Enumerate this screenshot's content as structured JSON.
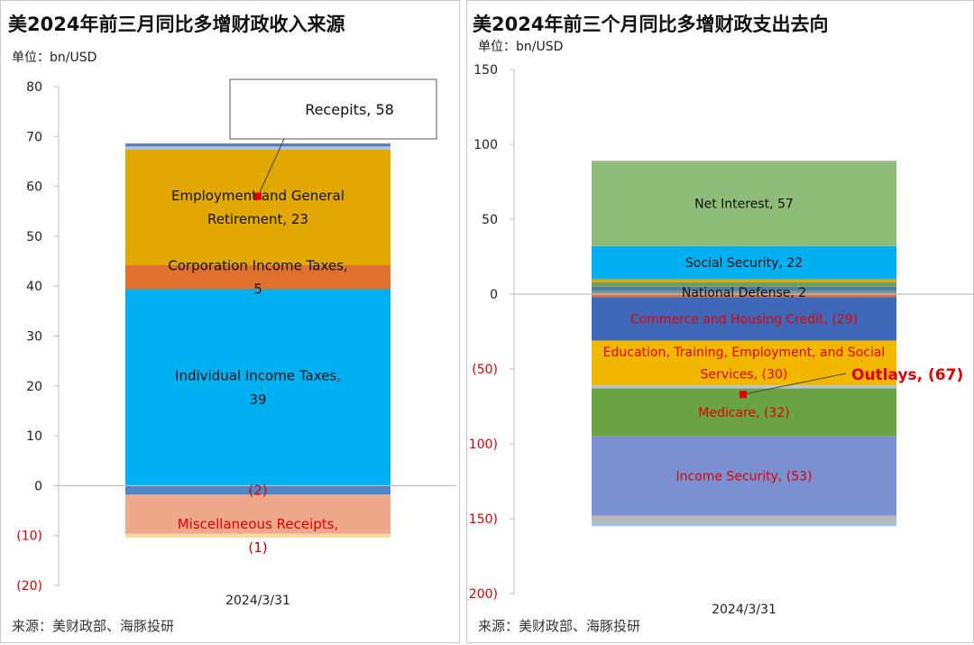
{
  "chart_data": [
    {
      "type": "bar",
      "subtype": "stacked",
      "title": "美2024年前三月同比多增财政收入来源",
      "unit_label": "单位：bn/USD",
      "source": "来源：美财政部、海豚投研",
      "categories": [
        "2024/3/31"
      ],
      "ylim": [
        -20,
        80
      ],
      "yticks": [
        80,
        70,
        60,
        50,
        40,
        30,
        20,
        10,
        0,
        -10,
        -20
      ],
      "ytick_labels": [
        "80",
        "70",
        "60",
        "50",
        "40",
        "30",
        "20",
        "10",
        "0",
        "(10)",
        "(20)"
      ],
      "legend": "none",
      "series": [
        {
          "label": "Individual Income Taxes, 39",
          "values": [
            39.4
          ],
          "color": "#00B0F0",
          "label_color": "#111111"
        },
        {
          "label": "Corporation Income Taxes, 5",
          "values": [
            4.8
          ],
          "color": "#E07030",
          "label_color": "#111111"
        },
        {
          "label": "Employment and General Retirement, 23",
          "values": [
            23.2
          ],
          "color": "#E0A800",
          "label_color": "#111111"
        },
        {
          "label": "",
          "values": [
            0.6
          ],
          "color": "#A9C4E4",
          "label_color": "#111111"
        },
        {
          "label": "",
          "values": [
            0.6
          ],
          "color": "#5B7DB8",
          "label_color": "#111111"
        },
        {
          "label": "(2)",
          "values": [
            -1.8
          ],
          "color": "#4F86C6",
          "label_color": "#E00000"
        },
        {
          "label": "",
          "values": [
            -7.8
          ],
          "color": "#F0A88C",
          "label_color": "#E00000"
        },
        {
          "label": "Miscellaneous Receipts, (1)",
          "values": [
            -0.8
          ],
          "color": "#F7D9A0",
          "label_color": "#E00000"
        }
      ],
      "total": {
        "label": "Recepits, 58",
        "value": 58
      }
    },
    {
      "type": "bar",
      "subtype": "stacked",
      "title": "美2024年前三个月同比多增财政支出去向",
      "unit_label": "单位：bn/USD",
      "source": "来源：美财政部、海豚投研",
      "categories": [
        "2024/3/31"
      ],
      "ylim": [
        -200,
        150
      ],
      "yticks": [
        150,
        100,
        50,
        0,
        -50,
        -100,
        -150,
        -200
      ],
      "ytick_labels": [
        "150",
        "100",
        "50",
        "0",
        "(50)",
        "(100)",
        "(150)",
        "(200)"
      ],
      "legend": "none",
      "series": [
        {
          "label": "National Defense, 2",
          "values": [
            2
          ],
          "color": "#8D8D8D",
          "label_color": "#111111"
        },
        {
          "label": "",
          "values": [
            3
          ],
          "color": "#4F7F9F",
          "label_color": "#111111"
        },
        {
          "label": "",
          "values": [
            3
          ],
          "color": "#6F9F5F",
          "label_color": "#111111"
        },
        {
          "label": "",
          "values": [
            2
          ],
          "color": "#E0A800",
          "label_color": "#111111"
        },
        {
          "label": "Social Security, 22",
          "values": [
            22
          ],
          "color": "#00B0F0",
          "label_color": "#111111"
        },
        {
          "label": "Net Interest, 57",
          "values": [
            57
          ],
          "color": "#8FBC78",
          "label_color": "#111111"
        },
        {
          "label": "",
          "values": [
            -2
          ],
          "color": "#E07030",
          "label_color": "#E00000"
        },
        {
          "label": "Commerce and Housing Credit, (29)",
          "values": [
            -29
          ],
          "color": "#3F68B8",
          "label_color": "#E00000"
        },
        {
          "label": "Education, Training, Employment, and Social Services, (30)",
          "values": [
            -30
          ],
          "color": "#F2B800",
          "label_color": "#E00000"
        },
        {
          "label": "",
          "values": [
            -2
          ],
          "color": "#B0C4DE",
          "label_color": "#E00000"
        },
        {
          "label": "Medicare, (32)",
          "values": [
            -32
          ],
          "color": "#6AA341",
          "label_color": "#E00000"
        },
        {
          "label": "Income Security, (53)",
          "values": [
            -53
          ],
          "color": "#7A90D0",
          "label_color": "#E00000"
        },
        {
          "label": "",
          "values": [
            -5
          ],
          "color": "#B8B8B8",
          "label_color": "#E00000"
        },
        {
          "label": "",
          "values": [
            -2
          ],
          "color": "#9DC3E6",
          "label_color": "#E00000"
        }
      ],
      "total": {
        "label": "Outlays, (67)",
        "value": -67
      }
    }
  ]
}
